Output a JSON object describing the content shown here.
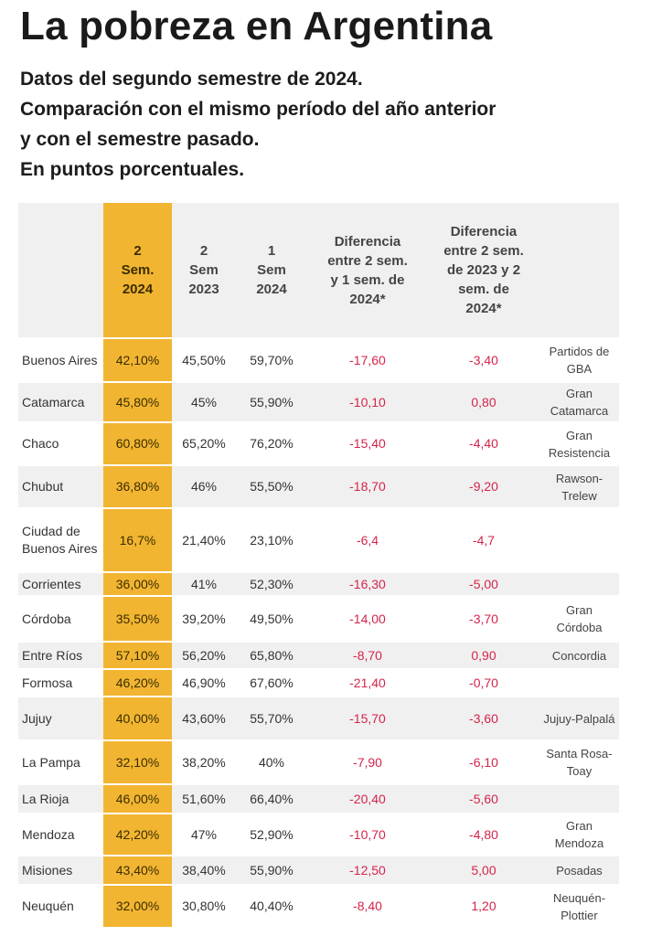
{
  "title": "La pobreza en Argentina",
  "subtitle_lines": [
    "Datos del segundo semestre de 2024.",
    "Comparación con el mismo período del año anterior",
    "y con el semestre pasado.",
    "En puntos porcentuales."
  ],
  "colors": {
    "highlight": "#f2b531",
    "negative": "#d4254a",
    "row_alt": "#f0f0f0"
  },
  "chart_data": {
    "type": "table",
    "columns": [
      "",
      "2 Sem. 2024",
      "2 Sem 2023",
      "1 Sem 2024",
      "Diferencia entre 2 sem. y 1 sem. de 2024*",
      "Diferencia entre 2 sem. de 2023 y 2 sem. de 2024*",
      ""
    ],
    "rows": [
      [
        "Buenos Aires",
        "42,10%",
        "45,50%",
        "59,70%",
        "-17,60",
        "-3,40",
        "Partidos de GBA"
      ],
      [
        "Catamarca",
        "45,80%",
        "45%",
        "55,90%",
        "-10,10",
        "0,80",
        "Gran Catamarca"
      ],
      [
        "Chaco",
        "60,80%",
        "65,20%",
        "76,20%",
        "-15,40",
        "-4,40",
        "Gran Resistencia"
      ],
      [
        "Chubut",
        "36,80%",
        "46%",
        "55,50%",
        "-18,70",
        "-9,20",
        "Rawson-Trelew"
      ],
      [
        "Ciudad de Buenos Aires",
        "16,7%",
        "21,40%",
        "23,10%",
        "-6,4",
        "-4,7",
        ""
      ],
      [
        "Corrientes",
        "36,00%",
        "41%",
        "52,30%",
        "-16,30",
        "-5,00",
        ""
      ],
      [
        "Córdoba",
        "35,50%",
        "39,20%",
        "49,50%",
        "-14,00",
        "-3,70",
        "Gran Córdoba"
      ],
      [
        "Entre Ríos",
        "57,10%",
        "56,20%",
        "65,80%",
        "-8,70",
        "0,90",
        "Concordia"
      ],
      [
        "Formosa",
        "46,20%",
        "46,90%",
        "67,60%",
        "-21,40",
        "-0,70",
        ""
      ],
      [
        "Jujuy",
        "40,00%",
        "43,60%",
        "55,70%",
        "-15,70",
        "-3,60",
        "Jujuy-Palpalá"
      ],
      [
        "La Pampa",
        "32,10%",
        "38,20%",
        "40%",
        "-7,90",
        "-6,10",
        "Santa Rosa-Toay"
      ],
      [
        "La Rioja",
        "46,00%",
        "51,60%",
        "66,40%",
        "-20,40",
        "-5,60",
        ""
      ],
      [
        "Mendoza",
        "42,20%",
        "47%",
        "52,90%",
        "-10,70",
        "-4,80",
        "Gran Mendoza"
      ],
      [
        "Misiones",
        "43,40%",
        "38,40%",
        "55,90%",
        "-12,50",
        "5,00",
        "Posadas"
      ],
      [
        "Neuquén",
        "32,00%",
        "30,80%",
        "40,40%",
        "-8,40",
        "1,20",
        "Neuquén-Plottier"
      ]
    ]
  }
}
